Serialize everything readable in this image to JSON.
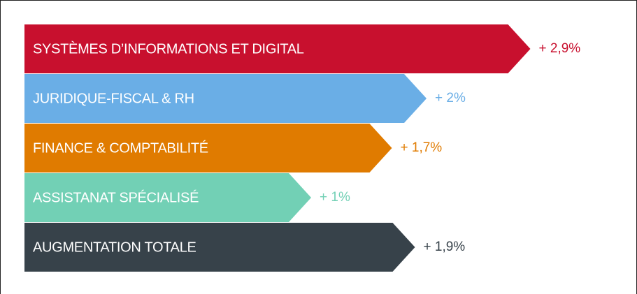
{
  "chart_data": {
    "type": "bar",
    "orientation": "horizontal",
    "categories": [
      "SYSTÈMES D’INFORMATIONS ET DIGITAL",
      "JURIDIQUE-FISCAL & RH",
      "FINANCE & COMPTABILITÉ",
      "ASSISTANAT SPÉCIALISÉ",
      "AUGMENTATION TOTALE"
    ],
    "values": [
      2.9,
      2,
      1.7,
      1,
      1.9
    ],
    "value_labels": [
      "+ 2,9%",
      "+ 2%",
      "+ 1,7%",
      "+ 1%",
      "+ 1,9%"
    ],
    "colors": [
      "#c8102e",
      "#6aaee6",
      "#e07b00",
      "#72d0b5",
      "#37424a"
    ]
  }
}
